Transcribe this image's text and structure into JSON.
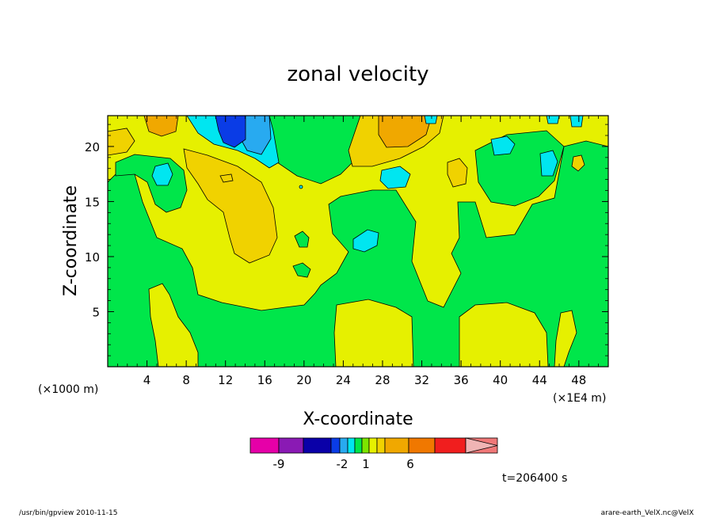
{
  "chart_data": {
    "type": "heatmap",
    "title": "zonal velocity",
    "xlabel": "X-coordinate",
    "ylabel": "Z-coordinate",
    "x_unit_label": "(×1E4 m)",
    "y_unit_label": "(×1000 m)",
    "xlim": [
      0,
      51
    ],
    "ylim": [
      0,
      22.8
    ],
    "x_ticks": [
      4,
      8,
      12,
      16,
      20,
      24,
      28,
      32,
      36,
      40,
      44,
      48
    ],
    "y_ticks": [
      5,
      10,
      15,
      20
    ],
    "time_label": "t=206400 s",
    "colorbar": {
      "tick_labels": [
        "-9",
        "-2",
        "1",
        "6"
      ],
      "colors": [
        "#e600a8",
        "#8a1ab4",
        "#0a00a8",
        "#0a3ce6",
        "#28aaf0",
        "#00e6f0",
        "#00e64a",
        "#7ce600",
        "#e6f000",
        "#f0d200",
        "#f0a800",
        "#f07800",
        "#f01e1e",
        "#f07878",
        "#f0b4b4"
      ]
    },
    "field_levels": {
      "green_background": "0 to 1",
      "yellow": "1 to 2",
      "orange": "2 to 3",
      "dark_orange": "3 to 4",
      "cyan": "-1 to 0",
      "sky_blue": "-2 to -1",
      "blue": "below -2"
    }
  },
  "footer": {
    "left": "/usr/bin/gpview   2010-11-15",
    "right": "arare-earth_VelX.nc@VelX"
  },
  "colors": {
    "green": "#00e64a",
    "yellow": "#e6f000",
    "orange": "#f0d200",
    "dark_orange": "#f0a800",
    "cyan": "#00e6f0",
    "sky_blue": "#28aaf0",
    "blue": "#0a3ce6"
  }
}
